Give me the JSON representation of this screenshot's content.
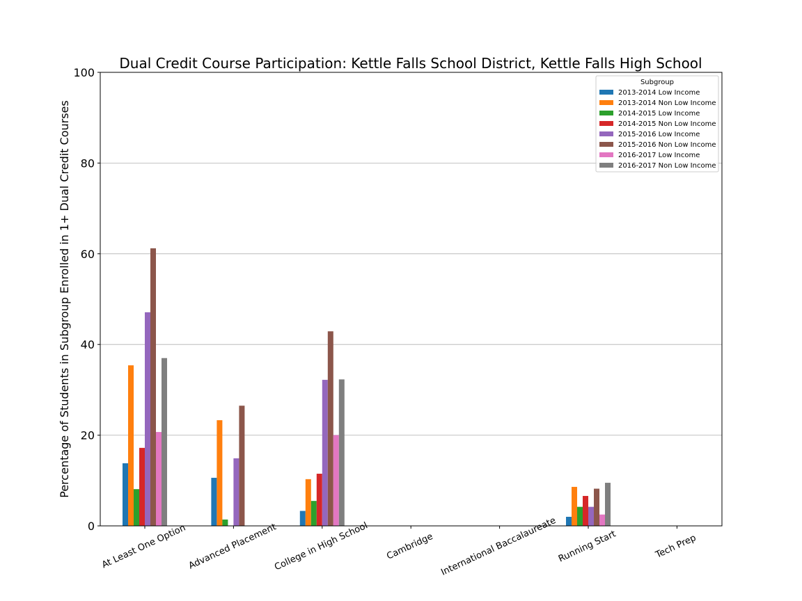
{
  "chart_data": {
    "type": "bar",
    "title": "Dual Credit Course Participation: Kettle Falls School District, Kettle Falls High School",
    "xlabel": "",
    "ylabel": "Percentage of Students in Subgroup Enrolled in 1+ Dual Credit Courses",
    "ylim": [
      0,
      100
    ],
    "yticks": [
      0,
      20,
      40,
      60,
      80,
      100
    ],
    "grid": "y",
    "legend": {
      "title": "Subgroup",
      "placement": "top-right"
    },
    "categories": [
      "At Least One Option",
      "Advanced Placement",
      "College in High School",
      "Cambridge",
      "International Baccalaureate",
      "Running Start",
      "Tech Prep"
    ],
    "series": [
      {
        "name": "2013-2014 Low Income",
        "color": "#1f77b4",
        "values": [
          13.8,
          10.6,
          3.3,
          0,
          0,
          2.0,
          0
        ]
      },
      {
        "name": "2013-2014 Non Low Income",
        "color": "#ff7f0e",
        "values": [
          35.4,
          23.3,
          10.3,
          0,
          0,
          8.6,
          0
        ]
      },
      {
        "name": "2014-2015 Low Income",
        "color": "#2ca02c",
        "values": [
          8.1,
          1.4,
          5.5,
          0,
          0,
          4.2,
          0
        ]
      },
      {
        "name": "2014-2015 Non Low Income",
        "color": "#d62728",
        "values": [
          17.2,
          0,
          11.5,
          0,
          0,
          6.6,
          0
        ]
      },
      {
        "name": "2015-2016 Low Income",
        "color": "#9467bd",
        "values": [
          47.1,
          14.9,
          32.2,
          0,
          0,
          4.2,
          0
        ]
      },
      {
        "name": "2015-2016 Non Low Income",
        "color": "#8c564b",
        "values": [
          61.2,
          26.5,
          42.9,
          0,
          0,
          8.2,
          0
        ]
      },
      {
        "name": "2016-2017 Low Income",
        "color": "#e377c2",
        "values": [
          20.7,
          0,
          20.0,
          0,
          0,
          2.5,
          0
        ]
      },
      {
        "name": "2016-2017 Non Low Income",
        "color": "#7f7f7f",
        "values": [
          37.0,
          0,
          32.3,
          0,
          0,
          9.5,
          0
        ]
      }
    ]
  }
}
